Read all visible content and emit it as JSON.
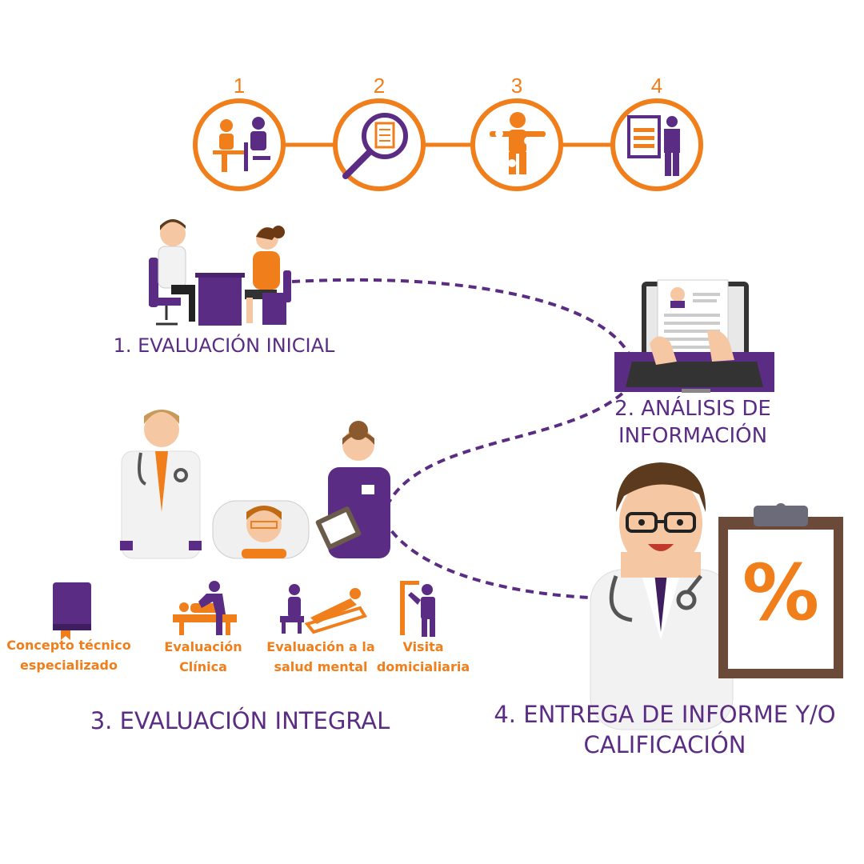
{
  "colors": {
    "accent": "#F07E1B",
    "brand": "#5B2C83"
  },
  "process_steps": [
    {
      "number": "1",
      "icon": "consultation-icon"
    },
    {
      "number": "2",
      "icon": "magnifier-checklist-icon"
    },
    {
      "number": "3",
      "icon": "body-assessment-icon"
    },
    {
      "number": "4",
      "icon": "report-document-icon"
    }
  ],
  "stages": {
    "s1": "1. EVALUACIÓN INICIAL",
    "s2_line1": "2. ANÁLISIS DE",
    "s2_line2": "INFORMACIÓN",
    "s3": "3. EVALUACIÓN INTEGRAL",
    "s4_line1": "4. ENTREGA DE INFORME Y/O",
    "s4_line2": "CALIFICACIÓN"
  },
  "services": [
    {
      "line1": "Concepto técnico",
      "line2": "especializado",
      "icon": "book-icon"
    },
    {
      "line1": "Evaluación",
      "line2": "Clínica",
      "icon": "physiotherapy-icon"
    },
    {
      "line1": "Evaluación a la",
      "line2": "salud mental",
      "icon": "therapy-couch-icon"
    },
    {
      "line1": "Visita",
      "line2": "domicialiaria",
      "icon": "home-visit-icon"
    }
  ],
  "clipboard_symbol": "%"
}
